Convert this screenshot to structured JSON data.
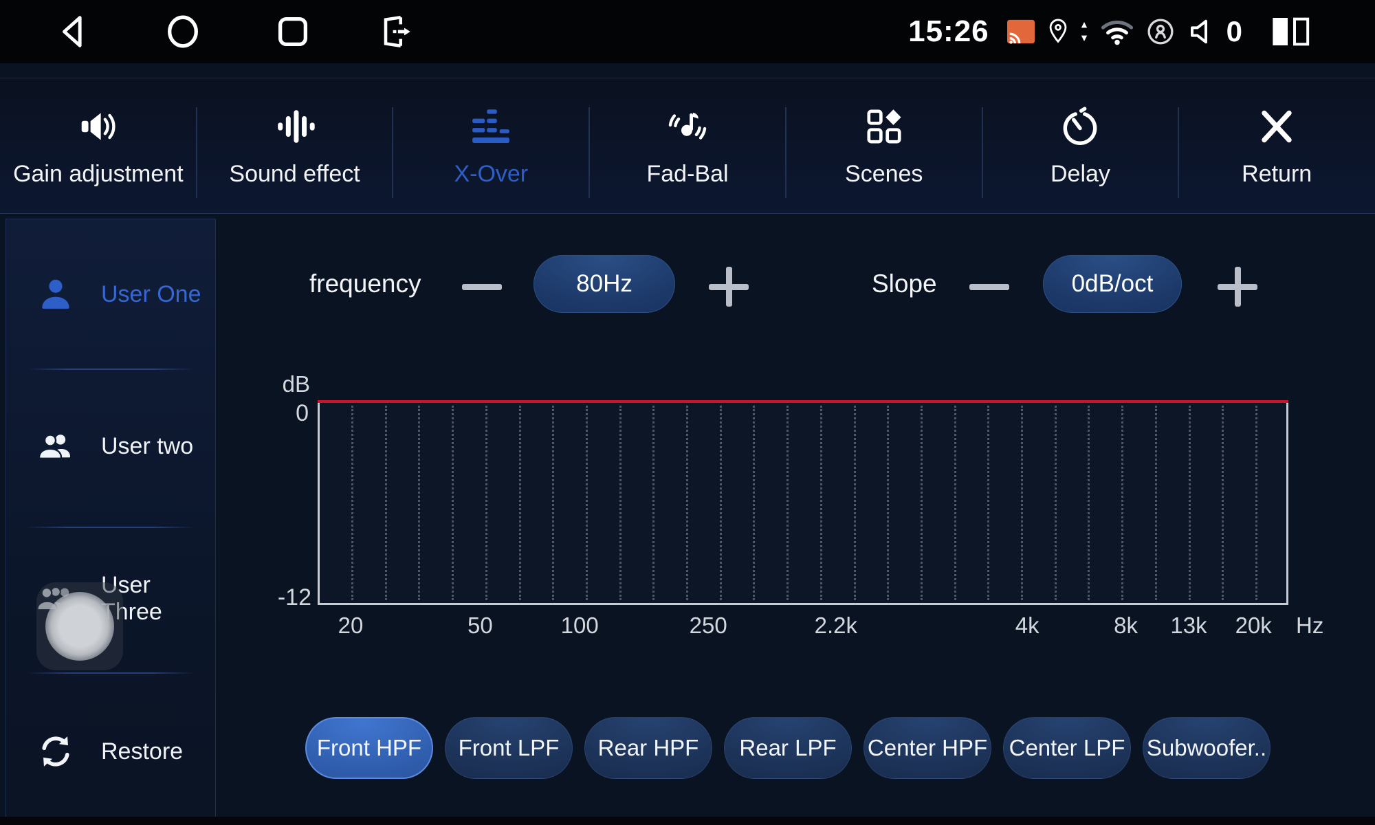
{
  "status_bar": {
    "time": "15:26",
    "volume_level": "0",
    "icons": [
      "back-icon",
      "home-icon",
      "recents-icon",
      "exit-app-icon",
      "cast-icon",
      "location-icon",
      "updown-arrows-icon",
      "wifi-icon",
      "hotspot-icon",
      "volume-icon",
      "split-screen-icon"
    ]
  },
  "tab_bar": {
    "active_tab": "X-Over",
    "tabs": [
      {
        "label": "Gain adjustment",
        "icon": "speaker-gain-icon",
        "active": false
      },
      {
        "label": "Sound effect",
        "icon": "equalizer-bars-icon",
        "active": false
      },
      {
        "label": "X-Over",
        "icon": "crossover-bars-icon",
        "active": true
      },
      {
        "label": "Fad-Bal",
        "icon": "note-waves-icon",
        "active": false
      },
      {
        "label": "Scenes",
        "icon": "scenes-grid-icon",
        "active": false
      },
      {
        "label": "Delay",
        "icon": "timer-icon",
        "active": false
      },
      {
        "label": "Return",
        "icon": "close-x-icon",
        "active": false
      }
    ]
  },
  "sidebar": {
    "items": [
      {
        "label": "User One",
        "icon": "user-one-icon",
        "active": true
      },
      {
        "label": "User two",
        "icon": "user-two-icon",
        "active": false
      },
      {
        "label": "User Three",
        "icon": "user-three-icon",
        "active": false
      },
      {
        "label": "Restore",
        "icon": "restore-icon",
        "active": false
      }
    ]
  },
  "controls": {
    "frequency": {
      "label": "frequency",
      "value": "80Hz"
    },
    "slope": {
      "label": "Slope",
      "value": "0dB/oct"
    }
  },
  "chart_data": {
    "type": "line",
    "ylabel": "dB",
    "x_unit_label": "Hz",
    "x_scale": "log",
    "xlim_hz": [
      20,
      20000
    ],
    "ylim": [
      -12,
      0
    ],
    "x_tick_labels": [
      "20",
      "50",
      "100",
      "250",
      "2.2k",
      "4k",
      "8k",
      "13k",
      "20k"
    ],
    "y_tick_labels": [
      "0",
      "-12"
    ],
    "grid": "vertical-dotted",
    "series": [
      {
        "name": "Front HPF response",
        "color": "#c9142a",
        "x_hz": [
          20,
          20000
        ],
        "y_db": [
          0,
          0
        ]
      }
    ]
  },
  "channel_buttons": {
    "selected": "Front HPF",
    "buttons": [
      {
        "label": "Front HPF",
        "selected": true
      },
      {
        "label": "Front LPF",
        "selected": false
      },
      {
        "label": "Rear HPF",
        "selected": false
      },
      {
        "label": "Rear LPF",
        "selected": false
      },
      {
        "label": "Center HPF",
        "selected": false
      },
      {
        "label": "Center LPF",
        "selected": false
      },
      {
        "label": "Subwoofer..",
        "selected": false
      }
    ]
  },
  "colors": {
    "accent_blue": "#2f5fc6",
    "line_red": "#c9142a",
    "value_pill_bg": "#1c3868",
    "selected_button_border": "#5b8be0",
    "cast_orange": "#e2683b"
  }
}
